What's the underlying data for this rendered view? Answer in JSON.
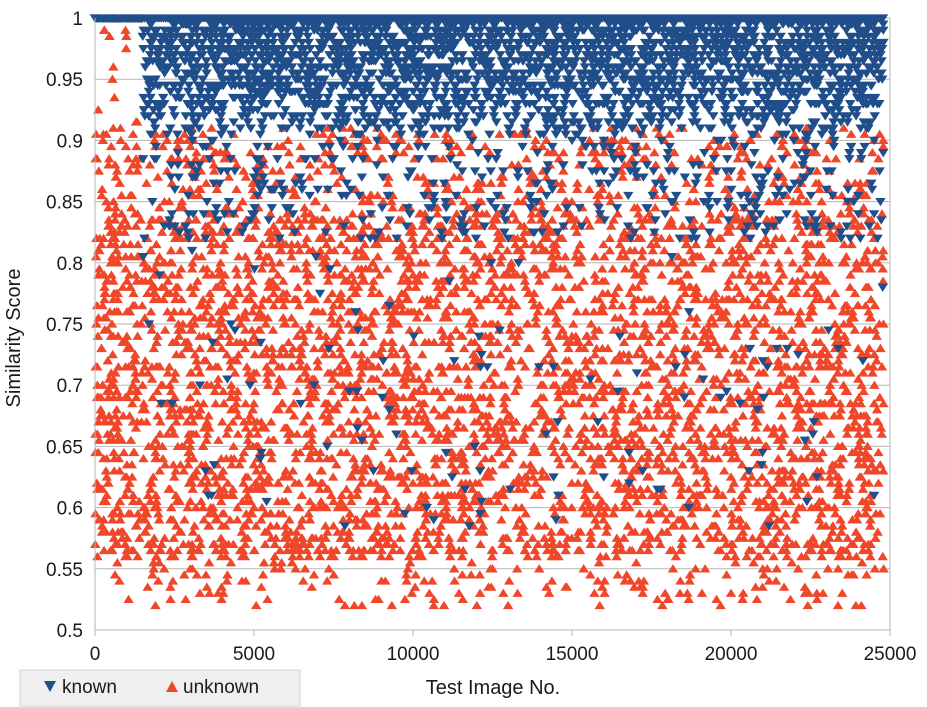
{
  "chart_data": {
    "type": "scatter",
    "title": "",
    "xlabel": "Test Image No.",
    "ylabel": "Similarity Score",
    "xlim": [
      0,
      25000
    ],
    "ylim": [
      0.5,
      1.0
    ],
    "x_ticks": [
      "0",
      "5000",
      "10000",
      "15000",
      "20000",
      "25000"
    ],
    "y_ticks": [
      "0.5",
      "0.55",
      "0.6",
      "0.65",
      "0.7",
      "0.75",
      "0.8",
      "0.85",
      "0.9",
      "0.95",
      "1"
    ],
    "grid": "horizontal",
    "legend_position": "bottom-left",
    "colors": {
      "known": "#1f4e8a",
      "unknown": "#f0462a",
      "grid": "#b5b5b5",
      "legend_bg": "#efefef"
    },
    "series": [
      {
        "name": "known",
        "marker": "triangle-down",
        "x": [
          0,
          500,
          1000,
          1400,
          1500,
          2000,
          2500,
          3000,
          3500,
          4000,
          5000,
          6000,
          7000,
          8000,
          9000,
          10000,
          11000,
          12000,
          13000,
          14000,
          15000,
          16000,
          17000,
          18000,
          19000,
          20000,
          21000,
          22000,
          23000,
          24000,
          24700,
          1700,
          3300,
          5200,
          7300,
          9800,
          14500,
          16800,
          21000,
          24500
        ],
        "y": [
          1.0,
          1.0,
          1.0,
          1.0,
          0.985,
          0.975,
          0.97,
          0.965,
          0.96,
          0.955,
          0.95,
          0.945,
          0.94,
          0.935,
          0.93,
          0.925,
          0.92,
          0.915,
          0.91,
          0.905,
          0.9,
          0.895,
          0.89,
          0.885,
          0.88,
          0.875,
          0.87,
          0.865,
          0.86,
          0.855,
          0.85,
          0.75,
          0.7,
          0.64,
          0.65,
          0.83,
          0.59,
          0.62,
          0.72,
          0.61
        ]
      },
      {
        "name": "unknown",
        "marker": "triangle-up",
        "x": [
          300,
          800,
          1200,
          1900,
          2500,
          3100,
          3300,
          4200,
          5000,
          6000,
          7300,
          8000,
          9000,
          9800,
          10500,
          11500,
          12500,
          13500,
          14500,
          15500,
          16500,
          17100,
          18000,
          19000,
          20000,
          21000,
          21200,
          22000,
          23000,
          24100,
          24800,
          500,
          3000,
          7000,
          9500,
          12000,
          15000,
          18500,
          22500,
          24700
        ],
        "y": [
          0.99,
          0.91,
          0.88,
          0.52,
          0.56,
          0.9,
          0.53,
          0.57,
          0.6,
          0.58,
          0.54,
          0.59,
          0.56,
          0.54,
          0.57,
          0.59,
          0.55,
          0.58,
          0.56,
          0.6,
          0.57,
          0.54,
          0.58,
          0.61,
          0.57,
          0.55,
          0.54,
          0.59,
          0.57,
          0.52,
          0.55,
          0.7,
          0.75,
          0.72,
          0.68,
          0.8,
          0.74,
          0.71,
          0.76,
          0.73
        ]
      }
    ]
  }
}
